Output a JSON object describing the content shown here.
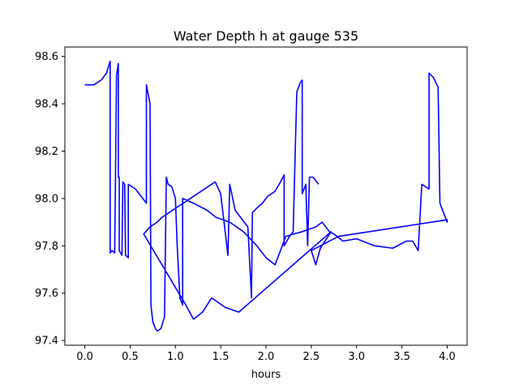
{
  "chart_data": {
    "type": "line",
    "title": "Water Depth h at gauge 535",
    "xlabel": "hours",
    "ylabel": "",
    "xlim": [
      -0.22,
      4.22
    ],
    "ylim": [
      97.38,
      98.64
    ],
    "xticks": [
      0.0,
      0.5,
      1.0,
      1.5,
      2.0,
      2.5,
      3.0,
      3.5,
      4.0
    ],
    "xtick_labels": [
      "0.0",
      "0.5",
      "1.0",
      "1.5",
      "2.0",
      "2.5",
      "3.0",
      "3.5",
      "4.0"
    ],
    "yticks": [
      97.4,
      97.6,
      97.8,
      98.0,
      98.2,
      98.4,
      98.6
    ],
    "ytick_labels": [
      "97.4",
      "97.6",
      "97.8",
      "98.0",
      "98.2",
      "98.4",
      "98.6"
    ],
    "grid": false,
    "legend": "none",
    "series": [
      {
        "color": "#0000ff",
        "points": [
          [
            0.0,
            98.48
          ],
          [
            0.1,
            98.48
          ],
          [
            0.18,
            98.5
          ],
          [
            0.24,
            98.53
          ],
          [
            0.28,
            98.58
          ],
          [
            0.28,
            98.09
          ],
          [
            0.28,
            97.77
          ],
          [
            0.3,
            97.78
          ],
          [
            0.33,
            97.77
          ],
          [
            0.35,
            98.52
          ],
          [
            0.37,
            98.57
          ],
          [
            0.37,
            98.09
          ],
          [
            0.38,
            98.09
          ],
          [
            0.38,
            97.78
          ],
          [
            0.41,
            97.76
          ],
          [
            0.42,
            98.07
          ],
          [
            0.44,
            98.06
          ],
          [
            0.45,
            97.76
          ],
          [
            0.48,
            97.75
          ],
          [
            0.48,
            98.06
          ],
          [
            0.52,
            98.05
          ],
          [
            0.56,
            98.04
          ],
          [
            0.6,
            98.02
          ],
          [
            0.64,
            98.0
          ],
          [
            0.68,
            97.98
          ],
          [
            0.68,
            98.48
          ],
          [
            0.72,
            98.4
          ],
          [
            0.73,
            97.55
          ],
          [
            0.75,
            97.48
          ],
          [
            0.78,
            97.45
          ],
          [
            0.8,
            97.44
          ],
          [
            0.84,
            97.45
          ],
          [
            0.88,
            97.5
          ],
          [
            0.9,
            98.09
          ],
          [
            0.92,
            98.06
          ],
          [
            0.96,
            98.05
          ],
          [
            1.0,
            98.0
          ],
          [
            1.02,
            97.8
          ],
          [
            1.05,
            97.58
          ],
          [
            1.08,
            97.55
          ],
          [
            1.08,
            98.0
          ],
          [
            1.2,
            97.98
          ],
          [
            1.35,
            97.95
          ],
          [
            1.45,
            97.92
          ],
          [
            1.6,
            97.9
          ],
          [
            1.75,
            97.86
          ],
          [
            1.9,
            97.8
          ],
          [
            2.0,
            97.75
          ],
          [
            2.1,
            97.72
          ],
          [
            2.22,
            97.84
          ],
          [
            2.4,
            97.86
          ],
          [
            2.55,
            97.88
          ],
          [
            2.62,
            97.9
          ],
          [
            2.7,
            97.86
          ],
          [
            2.75,
            97.85
          ],
          [
            2.85,
            97.82
          ],
          [
            3.0,
            97.83
          ],
          [
            3.2,
            97.8
          ],
          [
            3.4,
            97.79
          ],
          [
            3.55,
            97.82
          ],
          [
            3.62,
            97.82
          ],
          [
            3.68,
            97.78
          ],
          [
            3.72,
            98.06
          ],
          [
            3.8,
            98.04
          ],
          [
            3.8,
            98.53
          ],
          [
            3.85,
            98.51
          ],
          [
            3.9,
            98.47
          ],
          [
            3.92,
            97.98
          ],
          [
            3.96,
            97.94
          ],
          [
            4.0,
            97.9
          ],
          [
            4.0,
            97.91
          ],
          [
            2.8,
            97.84
          ],
          [
            2.5,
            97.78
          ],
          [
            2.55,
            97.72
          ],
          [
            2.6,
            97.79
          ],
          [
            2.72,
            97.86
          ],
          [
            1.7,
            97.52
          ],
          [
            1.55,
            97.54
          ],
          [
            1.4,
            97.58
          ],
          [
            1.3,
            97.52
          ],
          [
            1.2,
            97.49
          ],
          [
            1.1,
            97.56
          ],
          [
            0.65,
            97.85
          ],
          [
            0.72,
            97.88
          ],
          [
            0.8,
            97.9
          ],
          [
            0.85,
            97.92
          ],
          [
            1.4,
            98.06
          ],
          [
            1.44,
            98.07
          ],
          [
            1.5,
            98.02
          ],
          [
            1.58,
            97.76
          ],
          [
            1.6,
            98.06
          ],
          [
            1.66,
            97.95
          ],
          [
            1.72,
            97.92
          ],
          [
            1.8,
            97.88
          ],
          [
            1.84,
            97.58
          ],
          [
            1.85,
            97.94
          ],
          [
            1.9,
            97.96
          ],
          [
            1.96,
            97.98
          ],
          [
            2.02,
            98.01
          ],
          [
            2.1,
            98.03
          ],
          [
            2.16,
            98.07
          ],
          [
            2.2,
            98.1
          ],
          [
            2.2,
            97.8
          ],
          [
            2.26,
            97.84
          ],
          [
            2.3,
            97.86
          ],
          [
            2.34,
            98.45
          ],
          [
            2.38,
            98.49
          ],
          [
            2.4,
            98.5
          ],
          [
            2.4,
            98.02
          ],
          [
            2.44,
            98.06
          ],
          [
            2.46,
            97.8
          ],
          [
            2.48,
            98.09
          ],
          [
            2.52,
            98.09
          ],
          [
            2.58,
            98.06
          ]
        ]
      }
    ]
  }
}
